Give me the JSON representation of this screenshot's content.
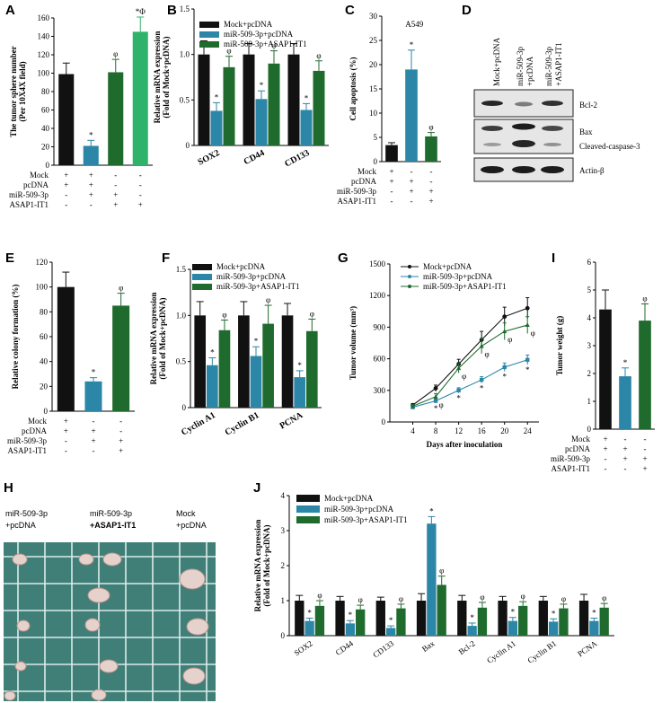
{
  "colors": {
    "mock": "#111111",
    "mir": "#2b86a7",
    "asap": "#1f6b2e",
    "asap_only": "#2fb36b",
    "grid_bg": "#3f7f77",
    "grid_line": "#dcecec"
  },
  "panels": {
    "A": {
      "letter": "A",
      "chart_data": {
        "type": "bar",
        "ylabel": "The tumor sphere number\n(Per 10X4X field)",
        "ylim": [
          0,
          160
        ],
        "yticks": [
          0,
          20,
          40,
          60,
          80,
          100,
          120,
          140,
          160
        ],
        "values": [
          99,
          21,
          101,
          145
        ],
        "errors": [
          12,
          6,
          14,
          16
        ],
        "colors": [
          "mock",
          "mir",
          "asap",
          "asap_only"
        ],
        "marks": [
          "",
          "*",
          "φ",
          "*Φ"
        ],
        "treatments": {
          "rows": [
            "Mock",
            "pcDNA",
            "miR-509-3p",
            "ASAP1-IT1"
          ],
          "signs": [
            [
              "+",
              "+",
              "-",
              "-"
            ],
            [
              "+",
              "+",
              "-",
              "-"
            ],
            [
              "-",
              "+",
              "+",
              "-"
            ],
            [
              "-",
              "-",
              "+",
              "+"
            ]
          ]
        }
      }
    },
    "B": {
      "letter": "B",
      "chart_data": {
        "type": "bar",
        "ylabel": "Relative mRNA expression\n(Fold of Mock+pcDNA)",
        "ylim": [
          0,
          1.5
        ],
        "yticks": [
          "0",
          "0.5",
          "1.0",
          "1.5"
        ],
        "categories": [
          "SOX2",
          "CD44",
          "CD133"
        ],
        "series": [
          {
            "name": "Mock+pcDNA",
            "color": "mock",
            "values": [
              1.0,
              1.0,
              1.0
            ],
            "errors": [
              0.15,
              0.12,
              0.12
            ],
            "marks": [
              "",
              "",
              ""
            ]
          },
          {
            "name": "miR-509-3p+pcDNA",
            "color": "mir",
            "values": [
              0.38,
              0.51,
              0.39
            ],
            "errors": [
              0.09,
              0.09,
              0.07
            ],
            "marks": [
              "*",
              "*",
              "*"
            ]
          },
          {
            "name": "miR-509-3p+ASAP1-IT1",
            "color": "asap",
            "values": [
              0.86,
              0.9,
              0.82
            ],
            "errors": [
              0.12,
              0.14,
              0.11
            ],
            "marks": [
              "φ",
              "φ",
              "φ"
            ]
          }
        ]
      }
    },
    "C": {
      "letter": "C",
      "chart_data": {
        "type": "bar",
        "title": "A549",
        "ylabel": "Cell apoptosis (%)",
        "ylim": [
          0,
          30
        ],
        "yticks": [
          0,
          5,
          10,
          15,
          20,
          25,
          30
        ],
        "values": [
          3.4,
          19.0,
          5.2
        ],
        "errors": [
          0.5,
          4,
          0.8
        ],
        "colors": [
          "mock",
          "mir",
          "asap"
        ],
        "marks": [
          "",
          "*",
          "φ"
        ],
        "treatments": {
          "rows": [
            "Mock",
            "pcDNA",
            "miR-509-3p",
            "ASAP1-IT1"
          ],
          "signs": [
            [
              "+",
              "-",
              "-"
            ],
            [
              "+",
              "+",
              "-"
            ],
            [
              "-",
              "+",
              "+"
            ],
            [
              "-",
              "-",
              "+"
            ]
          ]
        }
      }
    },
    "D": {
      "letter": "D",
      "columns": [
        "Mock+pcDNA",
        "miR-509-3p\n+pcDNA",
        "miR-509-3p\n+ASAP1-IT1"
      ],
      "bands": [
        "Bcl-2",
        "Bax",
        "Cleaved-caspase-3",
        "Actin-β"
      ]
    },
    "E": {
      "letter": "E",
      "chart_data": {
        "type": "bar",
        "ylabel": "Relative colony formation (%)",
        "ylim": [
          0,
          120
        ],
        "yticks": [
          0,
          20,
          40,
          60,
          80,
          100,
          120
        ],
        "values": [
          100,
          24,
          85
        ],
        "errors": [
          12,
          3,
          10
        ],
        "colors": [
          "mock",
          "mir",
          "asap"
        ],
        "marks": [
          "",
          "*",
          "φ"
        ],
        "treatments": {
          "rows": [
            "Mock",
            "pcDNA",
            "miR-509-3p",
            "ASAP1-IT1"
          ],
          "signs": [
            [
              "+",
              "-",
              "-"
            ],
            [
              "+",
              "+",
              "-"
            ],
            [
              "-",
              "+",
              "+"
            ],
            [
              "-",
              "-",
              "+"
            ]
          ]
        }
      }
    },
    "F": {
      "letter": "F",
      "chart_data": {
        "type": "bar",
        "ylabel": "Relative mRNA expression\n(Fold of Mock+pcDNA)",
        "ylim": [
          0,
          1.5
        ],
        "yticks": [
          "0",
          "0.5",
          "1.0",
          "1.5"
        ],
        "categories": [
          "Cyclin A1",
          "Cyclin B1",
          "PCNA"
        ],
        "series": [
          {
            "name": "Mock+pcDNA",
            "color": "mock",
            "values": [
              1.0,
              1.0,
              1.0
            ],
            "errors": [
              0.15,
              0.15,
              0.13
            ],
            "marks": [
              "",
              "",
              ""
            ]
          },
          {
            "name": "miR-509-3p+pcDNA",
            "color": "mir",
            "values": [
              0.46,
              0.56,
              0.33
            ],
            "errors": [
              0.08,
              0.1,
              0.07
            ],
            "marks": [
              "*",
              "*",
              "*"
            ]
          },
          {
            "name": "miR-509-3p+ASAP1-IT1",
            "color": "asap",
            "values": [
              0.84,
              0.91,
              0.83
            ],
            "errors": [
              0.11,
              0.2,
              0.13
            ],
            "marks": [
              "φ",
              "φ",
              "φ"
            ]
          }
        ]
      }
    },
    "G": {
      "letter": "G",
      "chart_data": {
        "type": "line",
        "xlabel": "Days after inoculation",
        "ylabel": "Tumor volume (mm³)",
        "xlim": [
          0,
          26
        ],
        "ylim": [
          0,
          1500
        ],
        "xticks": [
          4,
          8,
          12,
          16,
          20,
          24
        ],
        "yticks": [
          0,
          300,
          600,
          900,
          1200,
          1500
        ],
        "x": [
          4,
          8,
          12,
          16,
          20,
          24
        ],
        "series": [
          {
            "name": "Mock+pcDNA",
            "color": "mock",
            "values": [
              160,
              320,
              550,
              780,
              1000,
              1080
            ],
            "errors": [
              15,
              30,
              45,
              80,
              90,
              100
            ]
          },
          {
            "name": "miR-509-3p+pcDNA",
            "color": "mir",
            "values": [
              140,
              200,
              300,
              400,
              520,
              590
            ],
            "errors": [
              10,
              20,
              25,
              30,
              40,
              45
            ]
          },
          {
            "name": "miR-509-3p+ASAP1-IT1",
            "color": "asap",
            "values": [
              150,
              240,
              510,
              720,
              860,
              920
            ],
            "errors": [
              15,
              30,
              45,
              70,
              80,
              80
            ]
          }
        ],
        "annotations": {
          "mir_marks": [
            "",
            "*",
            "*",
            "*",
            "*",
            "*"
          ],
          "asap_marks": [
            "",
            "φ",
            "φ",
            "φ",
            "φ",
            "φ"
          ]
        }
      }
    },
    "I": {
      "letter": "I",
      "chart_data": {
        "type": "bar",
        "ylabel": "Tumor weight (g)",
        "ylim": [
          0,
          6
        ],
        "yticks": [
          0,
          1,
          2,
          3,
          4,
          5,
          6
        ],
        "values": [
          4.3,
          1.9,
          3.9
        ],
        "errors": [
          0.7,
          0.3,
          0.6
        ],
        "colors": [
          "mock",
          "mir",
          "asap"
        ],
        "marks": [
          "",
          "*",
          "φ"
        ],
        "treatments": {
          "rows": [
            "Mock",
            "pcDNA",
            "miR-509-3p",
            "ASAP1-IT1"
          ],
          "signs": [
            [
              "+",
              "-",
              "-"
            ],
            [
              "+",
              "+",
              "-"
            ],
            [
              "-",
              "+",
              "+"
            ],
            [
              "-",
              "-",
              "+"
            ]
          ]
        }
      }
    },
    "H": {
      "letter": "H",
      "labels": [
        "miR-509-3p\n+pcDNA",
        "miR-509-3p\n+ASAP1-IT1",
        "Mock\n+pcDNA"
      ]
    },
    "J": {
      "letter": "J",
      "chart_data": {
        "type": "bar",
        "ylabel": "Relative mRNA expression\n(Fold of Mock+pcDNA)",
        "ylim": [
          0,
          4
        ],
        "yticks": [
          0,
          1,
          2,
          3,
          4
        ],
        "categories": [
          "SOX2",
          "CD44",
          "CD133",
          "Bax",
          "Bcl-2",
          "Cyclin A1",
          "Cyclin B1",
          "PCNA"
        ],
        "series": [
          {
            "name": "Mock+pcDNA",
            "color": "mock",
            "values": [
              1.0,
              1.0,
              1.0,
              1.0,
              1.0,
              1.0,
              1.0,
              1.0
            ],
            "errors": [
              0.15,
              0.12,
              0.1,
              0.2,
              0.15,
              0.12,
              0.12,
              0.18
            ],
            "marks": [
              "",
              "",
              "",
              "",
              "",
              "",
              "",
              ""
            ]
          },
          {
            "name": "miR-509-3p+pcDNA",
            "color": "mir",
            "values": [
              0.42,
              0.35,
              0.22,
              3.2,
              0.28,
              0.42,
              0.4,
              0.42
            ],
            "errors": [
              0.08,
              0.08,
              0.06,
              0.2,
              0.08,
              0.1,
              0.08,
              0.08
            ],
            "marks": [
              "*",
              "*",
              "*",
              "*",
              "*",
              "*",
              "*",
              "*"
            ]
          },
          {
            "name": "miR-509-3p+ASAP1-IT1",
            "color": "asap",
            "values": [
              0.85,
              0.75,
              0.78,
              1.45,
              0.8,
              0.85,
              0.78,
              0.8
            ],
            "errors": [
              0.15,
              0.12,
              0.12,
              0.25,
              0.15,
              0.12,
              0.12,
              0.12
            ],
            "marks": [
              "φ",
              "φ",
              "φ",
              "φ",
              "φ",
              "φ",
              "φ",
              "φ"
            ]
          }
        ]
      }
    }
  }
}
